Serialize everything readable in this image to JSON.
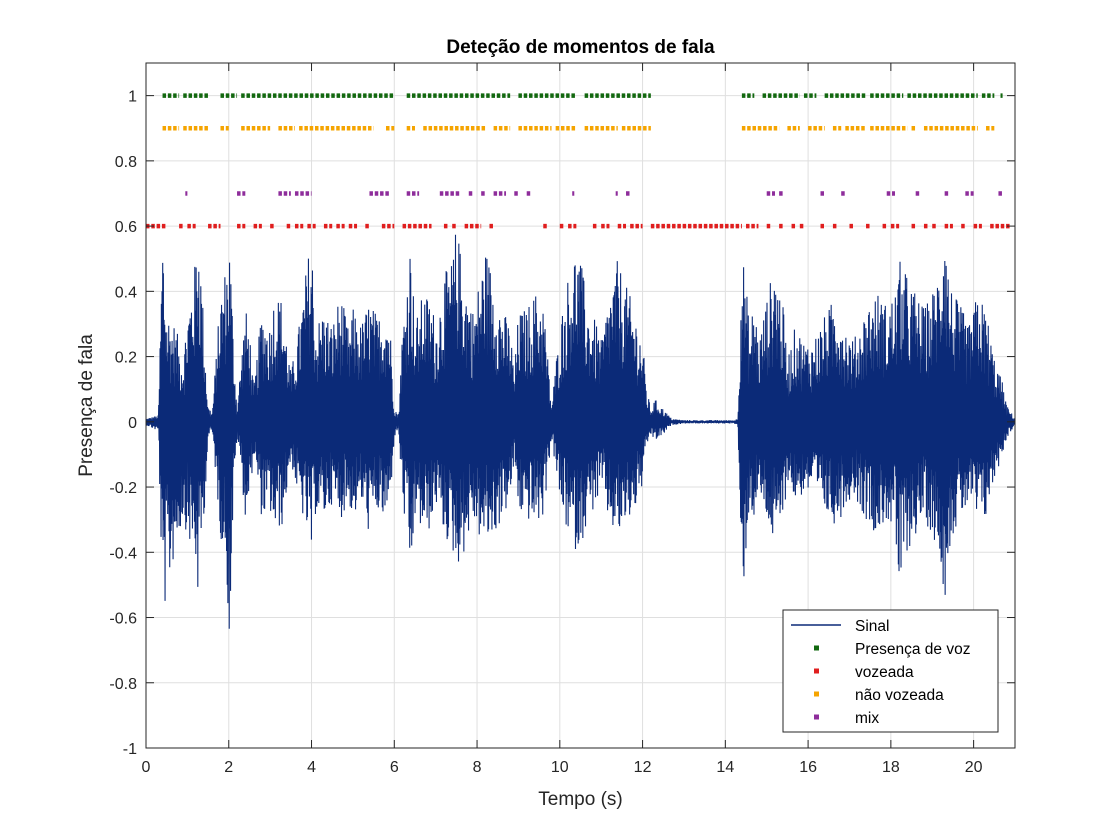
{
  "chart_data": {
    "type": "line",
    "title": "Deteção de momentos de fala",
    "xlabel": "Tempo (s)",
    "ylabel": "Presença de fala",
    "xlim": [
      0,
      21
    ],
    "ylim": [
      -1,
      1.1
    ],
    "xticks": [
      0,
      2,
      4,
      6,
      8,
      10,
      12,
      14,
      16,
      18,
      20
    ],
    "yticks": [
      -1,
      -0.8,
      -0.6,
      -0.4,
      -0.2,
      0,
      0.2,
      0.4,
      0.6,
      0.8,
      1
    ],
    "grid": true,
    "legend_position": "bottom-right",
    "series": [
      {
        "name": "Sinal",
        "kind": "line",
        "color": "#0b2a78",
        "envelope_x": [
          0.0,
          0.3,
          0.4,
          0.5,
          0.7,
          0.9,
          1.0,
          1.2,
          1.25,
          1.3,
          1.4,
          1.5,
          1.6,
          1.8,
          1.95,
          2.0,
          2.05,
          2.1,
          2.2,
          2.3,
          2.4,
          2.5,
          2.6,
          2.8,
          3.0,
          3.1,
          3.3,
          3.5,
          3.7,
          3.9,
          4.0,
          4.1,
          4.3,
          4.5,
          4.7,
          4.9,
          5.0,
          5.2,
          5.4,
          5.5,
          5.6,
          5.8,
          5.9,
          6.0,
          6.1,
          6.2,
          6.4,
          6.5,
          6.7,
          6.9,
          7.0,
          7.2,
          7.4,
          7.5,
          7.7,
          7.9,
          8.0,
          8.2,
          8.4,
          8.6,
          8.8,
          8.9,
          9.0,
          9.2,
          9.4,
          9.6,
          9.8,
          10.0,
          10.2,
          10.4,
          10.5,
          10.7,
          10.9,
          11.0,
          11.2,
          11.4,
          11.6,
          11.8,
          12.0,
          12.1,
          12.2,
          12.3,
          12.5,
          12.7,
          13.0,
          13.5,
          13.8,
          14.0,
          14.2,
          14.3,
          14.4,
          14.5,
          14.6,
          14.7,
          14.8,
          15.0,
          15.2,
          15.4,
          15.5,
          15.7,
          15.9,
          16.1,
          16.3,
          16.5,
          16.7,
          16.9,
          17.1,
          17.3,
          17.5,
          17.7,
          17.9,
          18.1,
          18.2,
          18.4,
          18.6,
          18.8,
          19.0,
          19.2,
          19.3,
          19.4,
          19.5,
          19.7,
          19.9,
          20.1,
          20.3,
          20.5,
          20.7,
          20.8,
          21.0
        ],
        "envelope_pos": [
          0.01,
          0.02,
          0.62,
          0.35,
          0.3,
          0.2,
          0.35,
          0.5,
          0.69,
          0.55,
          0.3,
          0.05,
          0.03,
          0.4,
          0.5,
          0.6,
          0.5,
          0.3,
          0.04,
          0.2,
          0.35,
          0.3,
          0.1,
          0.35,
          0.3,
          0.4,
          0.38,
          0.15,
          0.3,
          0.5,
          0.58,
          0.3,
          0.35,
          0.3,
          0.4,
          0.28,
          0.35,
          0.3,
          0.38,
          0.35,
          0.32,
          0.38,
          0.3,
          0.05,
          0.02,
          0.3,
          0.58,
          0.3,
          0.4,
          0.38,
          0.3,
          0.45,
          0.5,
          0.61,
          0.45,
          0.35,
          0.4,
          0.54,
          0.45,
          0.35,
          0.3,
          0.15,
          0.34,
          0.35,
          0.4,
          0.38,
          0.05,
          0.3,
          0.45,
          0.55,
          0.5,
          0.35,
          0.3,
          0.25,
          0.4,
          0.5,
          0.42,
          0.35,
          0.25,
          0.1,
          0.04,
          0.07,
          0.04,
          0.01,
          0.005,
          0.005,
          0.005,
          0.005,
          0.005,
          0.01,
          0.55,
          0.42,
          0.28,
          0.4,
          0.25,
          0.38,
          0.5,
          0.35,
          0.2,
          0.3,
          0.25,
          0.25,
          0.3,
          0.35,
          0.4,
          0.3,
          0.25,
          0.32,
          0.38,
          0.4,
          0.36,
          0.4,
          0.5,
          0.45,
          0.4,
          0.35,
          0.4,
          0.5,
          0.73,
          0.45,
          0.4,
          0.35,
          0.3,
          0.4,
          0.35,
          0.2,
          0.12,
          0.05,
          0.01
        ],
        "envelope_neg": [
          0.01,
          0.03,
          0.6,
          0.55,
          0.4,
          0.3,
          0.35,
          0.45,
          0.55,
          0.45,
          0.3,
          0.05,
          0.03,
          0.35,
          0.45,
          0.71,
          0.55,
          0.3,
          0.04,
          0.15,
          0.3,
          0.25,
          0.1,
          0.3,
          0.28,
          0.35,
          0.32,
          0.12,
          0.25,
          0.35,
          0.42,
          0.28,
          0.3,
          0.25,
          0.3,
          0.25,
          0.3,
          0.25,
          0.35,
          0.3,
          0.28,
          0.32,
          0.25,
          0.05,
          0.02,
          0.25,
          0.5,
          0.3,
          0.35,
          0.33,
          0.25,
          0.35,
          0.4,
          0.45,
          0.4,
          0.3,
          0.35,
          0.38,
          0.36,
          0.3,
          0.25,
          0.12,
          0.28,
          0.3,
          0.32,
          0.3,
          0.05,
          0.25,
          0.35,
          0.4,
          0.38,
          0.3,
          0.25,
          0.2,
          0.32,
          0.36,
          0.32,
          0.28,
          0.2,
          0.08,
          0.04,
          0.06,
          0.04,
          0.01,
          0.005,
          0.005,
          0.005,
          0.005,
          0.005,
          0.01,
          0.58,
          0.4,
          0.25,
          0.32,
          0.22,
          0.3,
          0.4,
          0.3,
          0.18,
          0.25,
          0.22,
          0.22,
          0.26,
          0.3,
          0.32,
          0.26,
          0.22,
          0.28,
          0.32,
          0.35,
          0.3,
          0.36,
          0.55,
          0.4,
          0.35,
          0.3,
          0.35,
          0.42,
          0.55,
          0.4,
          0.35,
          0.3,
          0.25,
          0.32,
          0.3,
          0.18,
          0.1,
          0.05,
          0.01
        ]
      },
      {
        "name": "Presença de voz",
        "kind": "markers",
        "color": "#12680f",
        "y": 1,
        "segments": [
          [
            0.4,
            0.8
          ],
          [
            0.9,
            1.5
          ],
          [
            1.8,
            2.2
          ],
          [
            2.3,
            6.0
          ],
          [
            6.3,
            8.8
          ],
          [
            9.0,
            10.4
          ],
          [
            10.6,
            12.2
          ],
          [
            14.4,
            14.7
          ],
          [
            14.9,
            15.8
          ],
          [
            15.9,
            16.2
          ],
          [
            16.4,
            17.4
          ],
          [
            17.5,
            18.3
          ],
          [
            18.4,
            20.1
          ],
          [
            20.2,
            20.5
          ],
          [
            20.65,
            20.7
          ]
        ]
      },
      {
        "name": "vozeada",
        "kind": "markers",
        "color": "#e01e1e",
        "y": 0.6,
        "segments": [
          [
            0.0,
            0.5
          ],
          [
            0.8,
            0.9
          ],
          [
            1.0,
            1.2
          ],
          [
            1.5,
            1.8
          ],
          [
            2.2,
            2.4
          ],
          [
            2.6,
            2.8
          ],
          [
            3.0,
            3.1
          ],
          [
            3.4,
            3.5
          ],
          [
            3.6,
            3.8
          ],
          [
            3.9,
            4.1
          ],
          [
            4.3,
            4.5
          ],
          [
            4.6,
            4.8
          ],
          [
            4.9,
            5.1
          ],
          [
            5.3,
            5.4
          ],
          [
            5.7,
            6.0
          ],
          [
            6.2,
            6.9
          ],
          [
            7.2,
            7.3
          ],
          [
            7.4,
            7.5
          ],
          [
            7.7,
            8.1
          ],
          [
            8.3,
            8.4
          ],
          [
            9.6,
            9.7
          ],
          [
            10.0,
            10.1
          ],
          [
            10.2,
            10.4
          ],
          [
            10.8,
            10.9
          ],
          [
            11.0,
            11.2
          ],
          [
            11.4,
            11.6
          ],
          [
            11.7,
            12.0
          ],
          [
            12.2,
            14.4
          ],
          [
            14.5,
            14.8
          ],
          [
            15.0,
            15.1
          ],
          [
            15.3,
            15.4
          ],
          [
            15.6,
            15.7
          ],
          [
            15.8,
            15.9
          ],
          [
            16.3,
            16.4
          ],
          [
            16.6,
            16.7
          ],
          [
            17.0,
            17.1
          ],
          [
            17.4,
            17.5
          ],
          [
            17.8,
            17.9
          ],
          [
            18.0,
            18.2
          ],
          [
            18.5,
            18.6
          ],
          [
            18.8,
            18.9
          ],
          [
            19.0,
            19.1
          ],
          [
            19.3,
            19.5
          ],
          [
            19.7,
            19.8
          ],
          [
            20.0,
            20.2
          ],
          [
            20.4,
            20.9
          ]
        ]
      },
      {
        "name": "não vozeada",
        "kind": "markers",
        "color": "#f5a400",
        "y": 0.9,
        "segments": [
          [
            0.4,
            0.8
          ],
          [
            0.9,
            1.5
          ],
          [
            1.8,
            2.0
          ],
          [
            2.3,
            3.0
          ],
          [
            3.2,
            3.6
          ],
          [
            3.7,
            5.5
          ],
          [
            5.8,
            6.0
          ],
          [
            6.3,
            6.5
          ],
          [
            6.7,
            8.2
          ],
          [
            8.4,
            8.8
          ],
          [
            9.0,
            9.8
          ],
          [
            9.9,
            10.4
          ],
          [
            10.6,
            11.4
          ],
          [
            11.5,
            12.2
          ],
          [
            14.4,
            15.3
          ],
          [
            15.5,
            15.8
          ],
          [
            16.0,
            16.4
          ],
          [
            16.6,
            16.8
          ],
          [
            16.9,
            17.4
          ],
          [
            17.5,
            18.4
          ],
          [
            18.5,
            18.6
          ],
          [
            18.8,
            20.1
          ],
          [
            20.3,
            20.5
          ]
        ]
      },
      {
        "name": "mix",
        "kind": "markers",
        "color": "#8e2d9b",
        "y": 0.7,
        "segments": [
          [
            0.95,
            1.0
          ],
          [
            2.2,
            2.4
          ],
          [
            3.2,
            3.5
          ],
          [
            3.6,
            4.0
          ],
          [
            5.4,
            5.9
          ],
          [
            6.3,
            6.6
          ],
          [
            7.1,
            7.6
          ],
          [
            7.8,
            7.9
          ],
          [
            8.1,
            8.2
          ],
          [
            8.4,
            8.7
          ],
          [
            8.9,
            9.0
          ],
          [
            9.2,
            9.3
          ],
          [
            10.3,
            10.35
          ],
          [
            11.35,
            11.4
          ],
          [
            11.6,
            11.7
          ],
          [
            15.0,
            15.2
          ],
          [
            15.3,
            15.4
          ],
          [
            16.3,
            16.4
          ],
          [
            16.8,
            16.9
          ],
          [
            17.9,
            18.1
          ],
          [
            18.6,
            18.7
          ],
          [
            19.3,
            19.4
          ],
          [
            19.8,
            20.0
          ],
          [
            20.6,
            20.7
          ]
        ]
      }
    ]
  }
}
